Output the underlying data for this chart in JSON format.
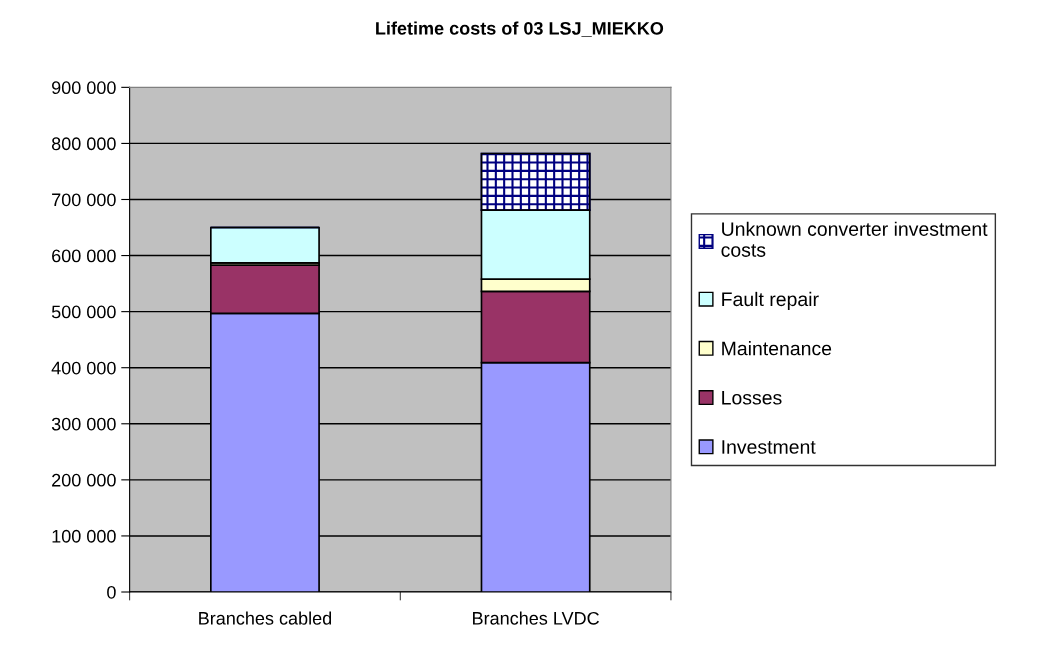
{
  "chart_data": {
    "type": "bar",
    "stacked": true,
    "title": "Lifetime costs of 03 LSJ_MIEKKO",
    "categories": [
      "Branches cabled",
      "Branches LVDC"
    ],
    "series": [
      {
        "name": "Investment",
        "color": "#9999ff",
        "values": [
          497000,
          409000
        ]
      },
      {
        "name": "Losses",
        "color": "#993366",
        "values": [
          86000,
          127000
        ]
      },
      {
        "name": "Maintenance",
        "color": "#ffffcc",
        "values": [
          4000,
          22000
        ]
      },
      {
        "name": "Fault repair",
        "color": "#ccffff",
        "values": [
          63000,
          123000
        ]
      },
      {
        "name": "Unknown converter investment costs",
        "color": "#000080",
        "values": [
          0,
          101000
        ]
      }
    ],
    "ylim": [
      0,
      900000
    ],
    "yticks": [
      {
        "value": 0,
        "label": "0"
      },
      {
        "value": 100000,
        "label": "100 000"
      },
      {
        "value": 200000,
        "label": "200 000"
      },
      {
        "value": 300000,
        "label": "300 000"
      },
      {
        "value": 400000,
        "label": "400 000"
      },
      {
        "value": 500000,
        "label": "500 000"
      },
      {
        "value": 600000,
        "label": "600 000"
      },
      {
        "value": 700000,
        "label": "700 000"
      },
      {
        "value": 800000,
        "label": "800 000"
      },
      {
        "value": 900000,
        "label": "900 000"
      }
    ],
    "grid": "y",
    "legend": "right"
  }
}
